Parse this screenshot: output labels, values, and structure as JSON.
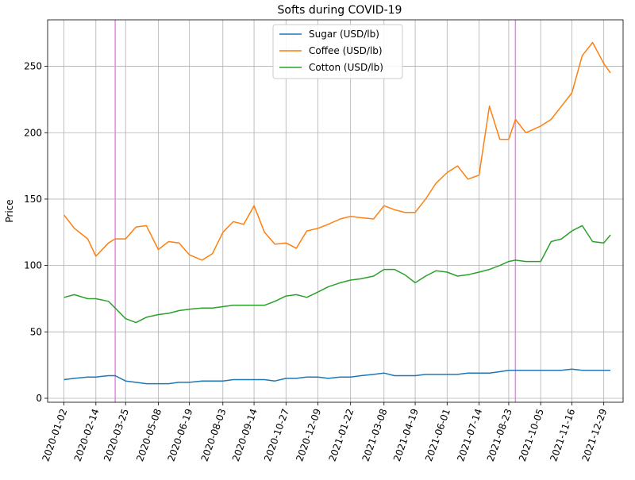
{
  "chart_data": {
    "type": "line",
    "title": "Softs during COVID-19",
    "xlabel": "",
    "ylabel": "Price",
    "ylim": [
      -3,
      285
    ],
    "x_tick_labels": [
      "2020-01-02",
      "2020-02-14",
      "2020-03-25",
      "2020-05-08",
      "2020-06-19",
      "2020-08-03",
      "2020-09-14",
      "2020-10-27",
      "2020-12-09",
      "2021-01-22",
      "2021-03-08",
      "2021-04-19",
      "2021-06-01",
      "2021-07-14",
      "2021-08-23",
      "2021-10-05",
      "2021-11-16",
      "2021-12-29"
    ],
    "y_tick_labels": [
      "0",
      "50",
      "100",
      "150",
      "200",
      "250"
    ],
    "y_ticks": [
      0,
      50,
      100,
      150,
      200,
      250
    ],
    "grid": true,
    "legend_position": "top-center",
    "vertical_markers": [
      "2020-03-11",
      "2021-09-01"
    ],
    "vertical_marker_color": "#ee82ee",
    "x": [
      "2020-01-02",
      "2020-01-16",
      "2020-02-03",
      "2020-02-14",
      "2020-03-02",
      "2020-03-11",
      "2020-03-25",
      "2020-04-08",
      "2020-04-22",
      "2020-05-08",
      "2020-05-22",
      "2020-06-05",
      "2020-06-19",
      "2020-07-06",
      "2020-07-20",
      "2020-08-03",
      "2020-08-17",
      "2020-08-31",
      "2020-09-14",
      "2020-09-28",
      "2020-10-12",
      "2020-10-27",
      "2020-11-10",
      "2020-11-24",
      "2020-12-09",
      "2020-12-23",
      "2021-01-08",
      "2021-01-22",
      "2021-02-05",
      "2021-02-22",
      "2021-03-08",
      "2021-03-22",
      "2021-04-05",
      "2021-04-19",
      "2021-05-03",
      "2021-05-17",
      "2021-06-01",
      "2021-06-15",
      "2021-06-29",
      "2021-07-14",
      "2021-07-28",
      "2021-08-11",
      "2021-08-23",
      "2021-09-01",
      "2021-09-15",
      "2021-10-05",
      "2021-10-19",
      "2021-11-02",
      "2021-11-16",
      "2021-11-30",
      "2021-12-14",
      "2021-12-29",
      "2022-01-07"
    ],
    "series": [
      {
        "name": "Sugar (USD/lb)",
        "color": "#1f77b4",
        "values": [
          14,
          15,
          16,
          16,
          17,
          17,
          13,
          12,
          11,
          11,
          11,
          12,
          12,
          13,
          13,
          13,
          14,
          14,
          14,
          14,
          13,
          15,
          15,
          16,
          16,
          15,
          16,
          16,
          17,
          18,
          19,
          17,
          17,
          17,
          18,
          18,
          18,
          18,
          19,
          19,
          19,
          20,
          21,
          21,
          21,
          21,
          21,
          21,
          22,
          21,
          21,
          21,
          21
        ]
      },
      {
        "name": "Coffee (USD/lb)",
        "color": "#ff7f0e",
        "values": [
          138,
          128,
          120,
          107,
          117,
          120,
          120,
          129,
          130,
          112,
          118,
          117,
          108,
          104,
          109,
          125,
          133,
          131,
          145,
          125,
          116,
          117,
          113,
          126,
          128,
          131,
          135,
          137,
          136,
          135,
          145,
          142,
          140,
          140,
          150,
          162,
          170,
          175,
          165,
          168,
          220,
          195,
          195,
          210,
          200,
          205,
          210,
          220,
          230,
          258,
          268,
          252,
          245
        ]
      },
      {
        "name": "Cotton (USD/lb)",
        "color": "#2ca02c",
        "values": [
          76,
          78,
          75,
          75,
          73,
          68,
          60,
          57,
          61,
          63,
          64,
          66,
          67,
          68,
          68,
          69,
          70,
          70,
          70,
          70,
          73,
          77,
          78,
          76,
          80,
          84,
          87,
          89,
          90,
          92,
          97,
          97,
          93,
          87,
          92,
          96,
          95,
          92,
          93,
          95,
          97,
          100,
          103,
          104,
          103,
          103,
          118,
          120,
          126,
          130,
          118,
          117,
          123
        ]
      }
    ]
  }
}
